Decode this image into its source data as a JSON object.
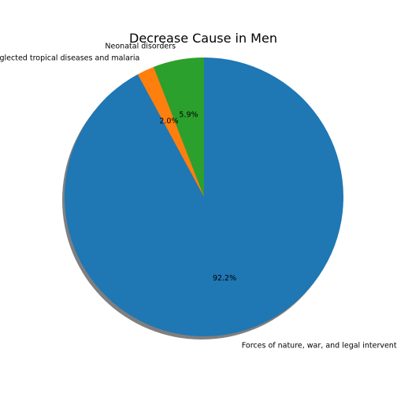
{
  "chart_data": {
    "type": "pie",
    "title": "Decrease Cause in Men",
    "slices": [
      {
        "label": "Neonatal disorders",
        "value": 5.9,
        "pct_label": "5.9%",
        "color": "#2ca02c"
      },
      {
        "label": "Neglected tropical diseases and malaria",
        "value": 2.0,
        "pct_label": "2.0%",
        "color": "#ff7f0e"
      },
      {
        "label": "Forces of nature, war, and legal intervention",
        "value": 92.2,
        "pct_label": "92.2%",
        "color": "#1f77b4"
      }
    ],
    "start_angle": "90 degrees (top), counter-clockwise",
    "shadow": true,
    "legend": "none"
  }
}
